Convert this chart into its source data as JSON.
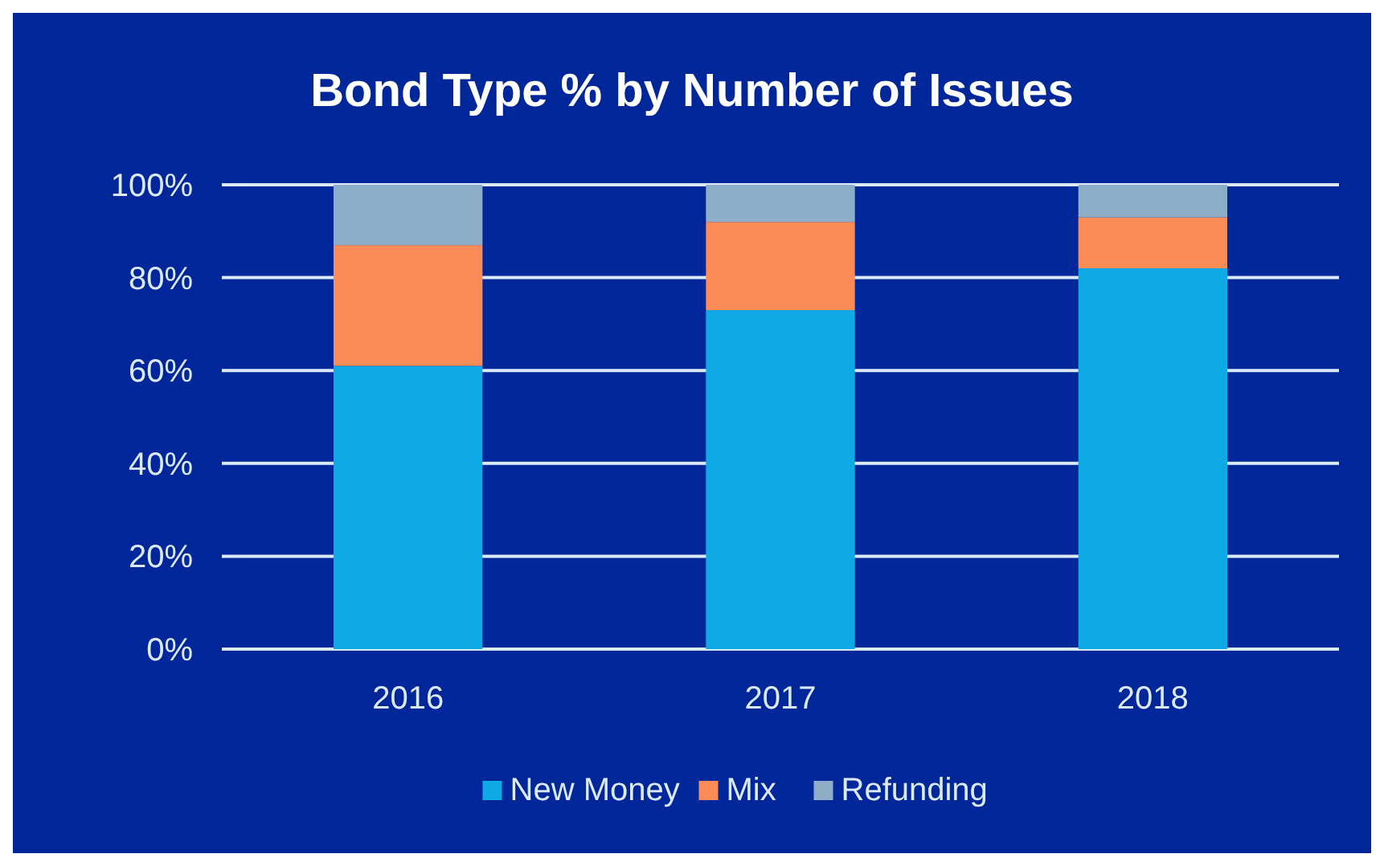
{
  "chart_data": {
    "type": "bar",
    "title": "Bond Type % by Number of Issues",
    "categories": [
      "2016",
      "2017",
      "2018"
    ],
    "stacked": true,
    "series": [
      {
        "name": "New Money",
        "color": "#0eaae8",
        "values": [
          61,
          73,
          82
        ]
      },
      {
        "name": "Mix",
        "color": "#fb8b57",
        "values": [
          26,
          19,
          11
        ]
      },
      {
        "name": "Refunding",
        "color": "#8daec6",
        "values": [
          13,
          8,
          7
        ]
      }
    ],
    "ylim": [
      0,
      100
    ],
    "yticks": [
      {
        "value": 0,
        "label": "0%"
      },
      {
        "value": 20,
        "label": "20%"
      },
      {
        "value": 40,
        "label": "40%"
      },
      {
        "value": 60,
        "label": "60%"
      },
      {
        "value": 80,
        "label": "80%"
      },
      {
        "value": 100,
        "label": "100%"
      }
    ],
    "grid": "y",
    "legend": "bottom"
  }
}
